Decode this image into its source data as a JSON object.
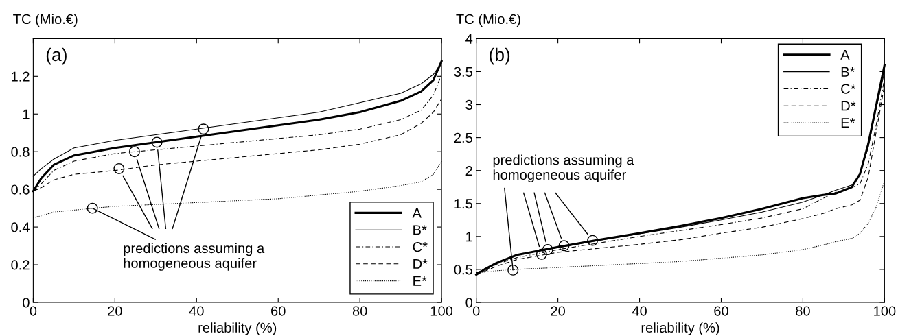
{
  "chart_data": [
    {
      "type": "line",
      "title": "(a)",
      "xlabel": "reliability (%)",
      "ylabel": "TC (Mio.€)",
      "x": [
        0,
        2,
        5,
        10,
        15,
        20,
        30,
        40,
        50,
        60,
        70,
        80,
        90,
        95,
        98,
        100
      ],
      "xlim": [
        0,
        100
      ],
      "xticks": [
        0,
        20,
        40,
        60,
        80,
        100
      ],
      "ylim": [
        0,
        1.4
      ],
      "yticks": [
        0,
        0.2,
        0.4,
        0.6,
        0.8,
        1,
        1.2
      ],
      "grid": false,
      "legend": "lower right",
      "marker": "none",
      "series": [
        {
          "name": "A",
          "color": "#000000",
          "line_style": "solid",
          "values": [
            0.59,
            0.66,
            0.73,
            0.78,
            0.8,
            0.82,
            0.85,
            0.88,
            0.91,
            0.94,
            0.97,
            1.01,
            1.07,
            1.12,
            1.18,
            1.28
          ]
        },
        {
          "name": "B*",
          "color": "#000000",
          "line_style": "solid",
          "values": [
            0.67,
            0.71,
            0.76,
            0.82,
            0.84,
            0.86,
            0.89,
            0.92,
            0.95,
            0.98,
            1.01,
            1.06,
            1.11,
            1.16,
            1.21,
            1.27
          ]
        },
        {
          "name": "C*",
          "color": "#000000",
          "line_style": "dashdot",
          "values": [
            0.59,
            0.63,
            0.7,
            0.75,
            0.77,
            0.79,
            0.81,
            0.83,
            0.85,
            0.87,
            0.89,
            0.92,
            0.97,
            1.02,
            1.1,
            1.21
          ]
        },
        {
          "name": "D*",
          "color": "#000000",
          "line_style": "dashed",
          "values": [
            0.59,
            0.61,
            0.65,
            0.68,
            0.69,
            0.7,
            0.73,
            0.75,
            0.77,
            0.79,
            0.81,
            0.84,
            0.89,
            0.95,
            1.01,
            1.08
          ]
        },
        {
          "name": "E*",
          "color": "#000000",
          "line_style": "dotted",
          "values": [
            0.45,
            0.46,
            0.48,
            0.49,
            0.5,
            0.51,
            0.52,
            0.53,
            0.54,
            0.55,
            0.57,
            0.59,
            0.62,
            0.64,
            0.68,
            0.75
          ]
        },
        {
          "type": "scatter",
          "marker": "circle",
          "color": "#000000",
          "x": [
            14.5,
            21,
            24.8,
            30.3,
            41.7
          ],
          "values": [
            0.5,
            0.71,
            0.8,
            0.85,
            0.92
          ]
        }
      ],
      "annotations": [
        {
          "text": "predictions assuming a\nhomogeneous aquifer",
          "x": 14.5,
          "y": 0.5
        }
      ]
    },
    {
      "type": "line",
      "title": "(b)",
      "xlabel": "reliability (%)",
      "ylabel": "TC (Mio.€)",
      "x": [
        0,
        2,
        5,
        10,
        20,
        30,
        40,
        50,
        60,
        70,
        80,
        85,
        88,
        92,
        94,
        96,
        98,
        100
      ],
      "xlim": [
        0,
        100
      ],
      "xticks": [
        0,
        20,
        40,
        60,
        80,
        100
      ],
      "ylim": [
        0,
        4
      ],
      "yticks": [
        0,
        0.5,
        1,
        1.5,
        2,
        2.5,
        3,
        3.5,
        4
      ],
      "grid": false,
      "legend": "upper right",
      "marker": "none",
      "series": [
        {
          "name": "A",
          "color": "#000000",
          "line_style": "solid",
          "values": [
            0.42,
            0.5,
            0.6,
            0.72,
            0.84,
            0.95,
            1.05,
            1.16,
            1.28,
            1.42,
            1.58,
            1.63,
            1.65,
            1.75,
            1.95,
            2.4,
            3.0,
            3.6
          ]
        },
        {
          "name": "B*",
          "color": "#000000",
          "line_style": "solid",
          "values": [
            0.45,
            0.5,
            0.6,
            0.72,
            0.83,
            0.94,
            1.04,
            1.14,
            1.25,
            1.37,
            1.52,
            1.63,
            1.7,
            1.78,
            1.95,
            2.35,
            2.95,
            3.5
          ]
        },
        {
          "name": "C*",
          "color": "#000000",
          "line_style": "dashdot",
          "values": [
            0.45,
            0.48,
            0.58,
            0.68,
            0.8,
            0.9,
            1.0,
            1.09,
            1.18,
            1.28,
            1.42,
            1.58,
            1.67,
            1.74,
            1.8,
            2.1,
            2.7,
            3.4
          ]
        },
        {
          "name": "D*",
          "color": "#000000",
          "line_style": "dashed",
          "values": [
            0.45,
            0.47,
            0.55,
            0.65,
            0.76,
            0.82,
            0.88,
            0.95,
            1.05,
            1.14,
            1.27,
            1.35,
            1.42,
            1.48,
            1.55,
            1.9,
            2.6,
            3.3
          ]
        },
        {
          "name": "E*",
          "color": "#000000",
          "line_style": "dotted",
          "values": [
            0.45,
            0.46,
            0.48,
            0.5,
            0.53,
            0.56,
            0.59,
            0.62,
            0.67,
            0.72,
            0.8,
            0.87,
            0.92,
            0.97,
            1.05,
            1.2,
            1.45,
            1.85
          ]
        },
        {
          "type": "scatter",
          "marker": "circle",
          "color": "#000000",
          "x": [
            9,
            16,
            17.5,
            21.5,
            28.5
          ],
          "values": [
            0.49,
            0.73,
            0.8,
            0.86,
            0.94
          ]
        }
      ],
      "annotations": [
        {
          "text": "predictions assuming a\nhomogeneous aquifer",
          "x": 9,
          "y": 0.49
        }
      ]
    }
  ]
}
